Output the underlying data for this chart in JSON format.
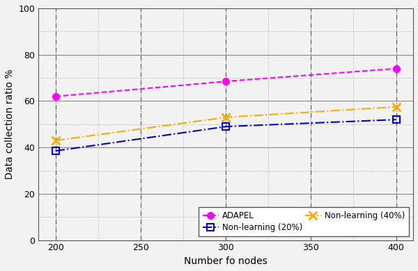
{
  "adapel": {
    "x": [
      200,
      300,
      400
    ],
    "y": [
      62.0,
      68.5,
      74.0
    ],
    "color": "#ff00ff",
    "label": "ADAPEL",
    "linestyle": "--",
    "marker": "o",
    "markersize": 7
  },
  "nonlearning_20": {
    "x": [
      200,
      300,
      400
    ],
    "y": [
      38.5,
      49.0,
      52.0
    ],
    "color": "#0000cc",
    "label": "Non-learning (20%)",
    "linestyle": "-.",
    "marker": "s",
    "markersize": 7
  },
  "nonlearning_40": {
    "x": [
      200,
      300,
      400
    ],
    "y": [
      43.0,
      53.0,
      57.5
    ],
    "color": "#ffaa00",
    "label": "Non-learning (40%)",
    "linestyle": "-.",
    "marker": "x",
    "markersize": 9
  },
  "xlabel": "Number fo nodes",
  "ylabel": "Data collection ratio %",
  "xlim": [
    190,
    410
  ],
  "ylim": [
    0,
    100
  ],
  "xticks": [
    200,
    250,
    300,
    350,
    400
  ],
  "yticks": [
    0,
    20,
    40,
    60,
    80,
    100
  ],
  "major_grid_color_h": "#888888",
  "major_grid_color_v": "#555555",
  "minor_grid_color": "#aaaaaa",
  "background_color": "#f2f2f2",
  "axis_bg_color": "#f2f2f2"
}
